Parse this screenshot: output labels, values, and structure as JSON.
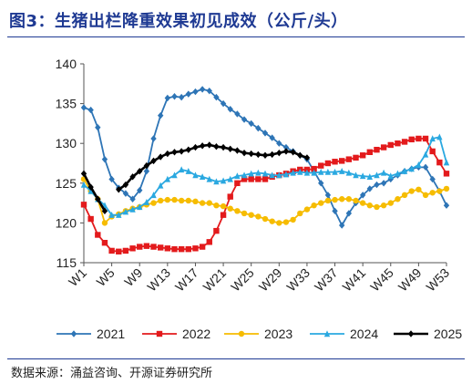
{
  "figure": {
    "title": "图3：生猪出栏降重效果初见成效（公斤/头）",
    "source": "数据来源：涌益咨询、开源证券研究所"
  },
  "chart_data": {
    "type": "line",
    "title": "图3：生猪出栏降重效果初见成效（公斤/头）",
    "xlabel": "",
    "ylabel": "",
    "ylim": [
      115,
      140
    ],
    "yticks": [
      115,
      120,
      125,
      130,
      135,
      140
    ],
    "x": [
      "W1",
      "W2",
      "W3",
      "W4",
      "W5",
      "W6",
      "W7",
      "W8",
      "W9",
      "W10",
      "W11",
      "W12",
      "W13",
      "W14",
      "W15",
      "W16",
      "W17",
      "W18",
      "W19",
      "W20",
      "W21",
      "W22",
      "W23",
      "W24",
      "W25",
      "W26",
      "W27",
      "W28",
      "W29",
      "W30",
      "W31",
      "W32",
      "W33",
      "W34",
      "W35",
      "W36",
      "W37",
      "W38",
      "W39",
      "W40",
      "W41",
      "W42",
      "W43",
      "W44",
      "W45",
      "W46",
      "W47",
      "W48",
      "W49",
      "W50",
      "W51",
      "W52",
      "W53"
    ],
    "xtick_labels": [
      "W1",
      "W5",
      "W9",
      "W13",
      "W17",
      "W21",
      "W25",
      "W29",
      "W33",
      "W37",
      "W41",
      "W45",
      "W49",
      "W53"
    ],
    "grid": false,
    "legend_position": "bottom",
    "series": [
      {
        "name": "2021",
        "color": "#2e75b6",
        "marker": "diamond",
        "values": [
          134.5,
          134.2,
          132,
          128,
          125.5,
          124.4,
          123.7,
          123,
          124.1,
          126.5,
          130.6,
          133.5,
          135.7,
          135.9,
          135.8,
          136.2,
          136.5,
          136.8,
          136.6,
          135.8,
          135,
          134.3,
          133.7,
          133,
          132.5,
          131.9,
          131.3,
          130.7,
          130,
          129.5,
          129,
          128.5,
          128,
          126.5,
          125,
          123.5,
          121.5,
          119.7,
          121.2,
          122.5,
          123.5,
          124.3,
          124.8,
          125,
          125.5,
          126,
          126.5,
          126.8,
          127,
          127,
          125.5,
          124,
          122.2
        ]
      },
      {
        "name": "2022",
        "color": "#e31a1c",
        "marker": "square",
        "values": [
          122.3,
          120.5,
          118.5,
          117.5,
          116.5,
          116.4,
          116.5,
          116.8,
          117,
          117.1,
          117,
          116.9,
          116.8,
          116.7,
          116.7,
          116.7,
          116.8,
          117,
          117.6,
          119,
          121,
          123.3,
          125,
          125.5,
          125.5,
          125.5,
          125.5,
          125.8,
          126,
          126.2,
          126.5,
          126.7,
          126.7,
          126.8,
          127.2,
          127.5,
          127.7,
          127.8,
          128,
          128.2,
          128.5,
          128.9,
          129.2,
          129.5,
          129.8,
          130,
          130.2,
          130.5,
          130.6,
          130.6,
          129,
          127.6,
          126.2
        ]
      },
      {
        "name": "2023",
        "color": "#f6bc00",
        "marker": "circle",
        "values": [
          125.5,
          124,
          123,
          120,
          120.8,
          121.1,
          121.5,
          121.8,
          122,
          122.3,
          122.5,
          122.8,
          122.9,
          122.9,
          122.8,
          122.8,
          122.7,
          122.5,
          122.5,
          122.2,
          122.1,
          121.8,
          121.5,
          121.2,
          121,
          120.8,
          120.5,
          120.2,
          120,
          120.1,
          120.4,
          121.2,
          121.7,
          122.2,
          122.5,
          122.8,
          122.9,
          123,
          123,
          122.8,
          122.5,
          122.2,
          122,
          122.2,
          122.5,
          123,
          123.5,
          124,
          124.2,
          123.5,
          123.8,
          124,
          124.3
        ]
      },
      {
        "name": "2024",
        "color": "#2aa8e0",
        "marker": "triangle",
        "values": [
          124.8,
          124,
          123,
          122.2,
          121,
          121,
          121.4,
          121.7,
          122,
          122.6,
          123.5,
          124.7,
          125.5,
          126,
          126.7,
          126.5,
          126,
          125.8,
          125.5,
          125.2,
          125.3,
          125.5,
          125.9,
          126,
          126.2,
          126.3,
          126.2,
          126,
          126,
          126.1,
          126.3,
          126.4,
          126.3,
          126.3,
          126.4,
          126.4,
          126.4,
          126.5,
          126.3,
          126,
          125.9,
          125.8,
          126,
          126.3,
          125.9,
          126.2,
          126.5,
          126.8,
          127.3,
          128.6,
          130.6,
          130.8,
          127.6
        ]
      },
      {
        "name": "2025",
        "color": "#000000",
        "marker": "diamond",
        "values": [
          126.2,
          124.5,
          123,
          121.5,
          null,
          124.2,
          124.8,
          125.8,
          126.5,
          127.2,
          127.8,
          128.3,
          128.7,
          128.9,
          129,
          129.2,
          129.5,
          129.7,
          129.8,
          129.6,
          129.5,
          129.3,
          129.1,
          128.8,
          128.7,
          128.6,
          128.5,
          128.6,
          128.8,
          129,
          128.9,
          128.5,
          128.2,
          null,
          null,
          null,
          null,
          null,
          null,
          null,
          null,
          null,
          null,
          null,
          null,
          null,
          null,
          null,
          null,
          null,
          null,
          null,
          null
        ]
      }
    ]
  }
}
